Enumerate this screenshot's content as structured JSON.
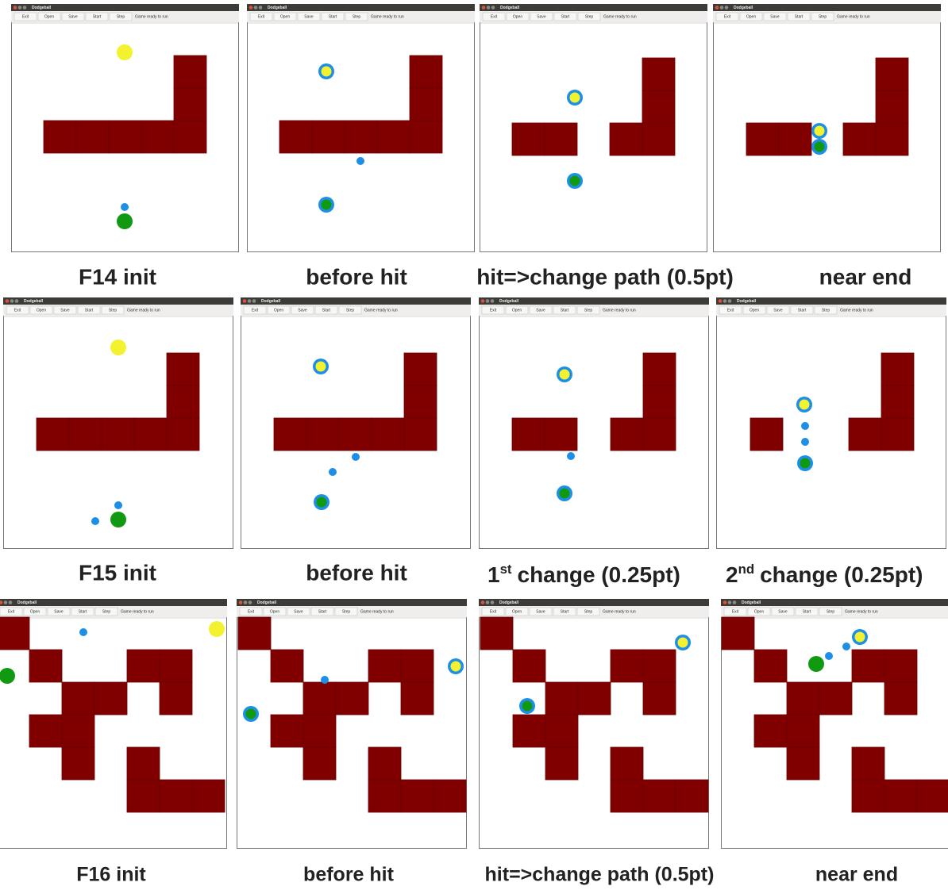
{
  "window": {
    "title": "Dodgeball",
    "buttons": [
      "Exit",
      "Open",
      "Save",
      "Start",
      "Step"
    ],
    "status": "Game ready to run"
  },
  "rows": [
    {
      "panels": [
        {
          "caption": "F14 init"
        },
        {
          "caption": "before hit"
        },
        {
          "caption": "hit=>change path (0.5pt)"
        },
        {
          "caption": "near end"
        }
      ]
    },
    {
      "panels": [
        {
          "caption": "F15 init"
        },
        {
          "caption": "before hit"
        },
        {
          "caption": {
            "ordinal": "1",
            "suffix": "st",
            "text": "change (0.25pt)"
          }
        },
        {
          "caption": {
            "ordinal": "2",
            "suffix": "nd",
            "text": "change (0.25pt)"
          }
        }
      ]
    },
    {
      "panels": [
        {
          "caption": "F16 init"
        },
        {
          "caption": "before hit"
        },
        {
          "caption": "hit=>change path (0.5pt)"
        },
        {
          "caption": "near end"
        }
      ]
    }
  ]
}
